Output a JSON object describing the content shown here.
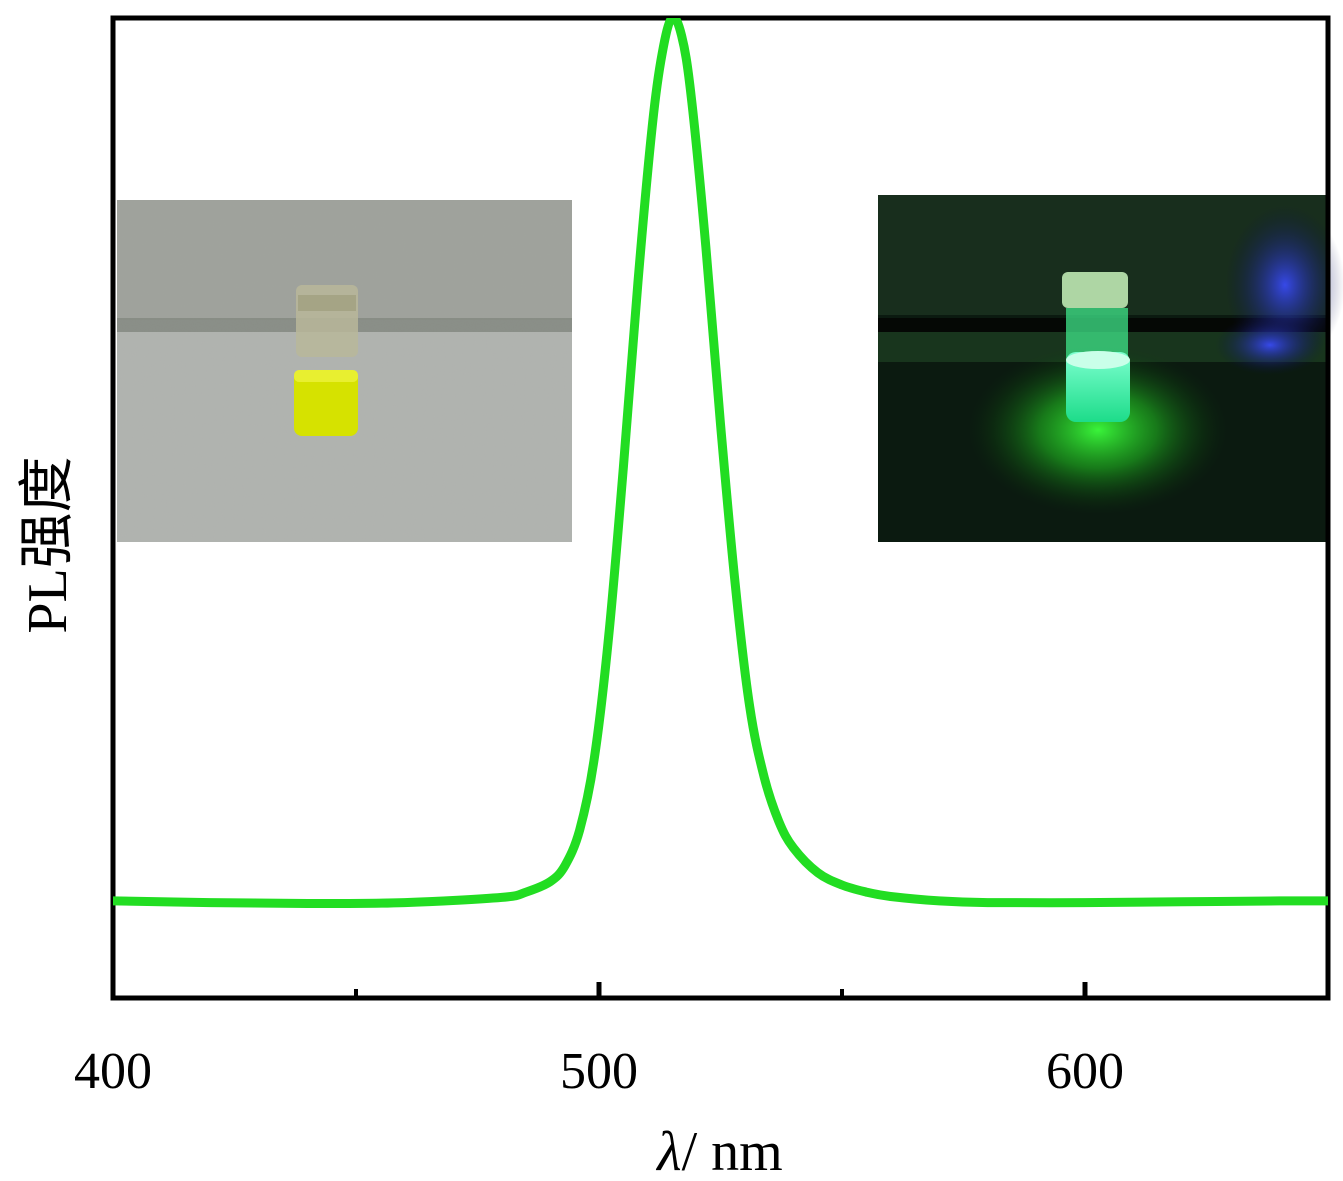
{
  "chart_data": {
    "type": "line",
    "title": "",
    "xlabel": "λ/ nm",
    "xlabel_symbol": "λ",
    "xlabel_unit": "/ nm",
    "ylabel": "PL强度",
    "xlim": [
      400,
      650
    ],
    "ylim": [
      -0.11,
      1.0
    ],
    "x_ticks": [
      400,
      500,
      600
    ],
    "x_minor_ticks": [
      450,
      550
    ],
    "y_ticks": [],
    "grid": false,
    "legend": "none",
    "series": [
      {
        "color": "#22dd22",
        "x": [
          400,
          420,
          440,
          460,
          480,
          485,
          490,
          493,
          496,
          499,
          502,
          505,
          508,
          511,
          513,
          515,
          517,
          519,
          522,
          525,
          528,
          531,
          534,
          537,
          540,
          545,
          550,
          555,
          560,
          570,
          580,
          600,
          620,
          640,
          650
        ],
        "y": [
          0.0,
          -0.002,
          -0.003,
          -0.002,
          0.004,
          0.01,
          0.022,
          0.04,
          0.08,
          0.16,
          0.3,
          0.49,
          0.7,
          0.88,
          0.96,
          1.0,
          0.98,
          0.91,
          0.74,
          0.54,
          0.36,
          0.22,
          0.14,
          0.09,
          0.06,
          0.032,
          0.018,
          0.01,
          0.005,
          0.0,
          -0.002,
          -0.002,
          -0.001,
          0.0,
          0.0
        ]
      }
    ],
    "insets": [
      {
        "description": "vial-daylight",
        "position": "upper-left"
      },
      {
        "description": "vial-uv-fluorescence",
        "position": "upper-right"
      }
    ]
  }
}
